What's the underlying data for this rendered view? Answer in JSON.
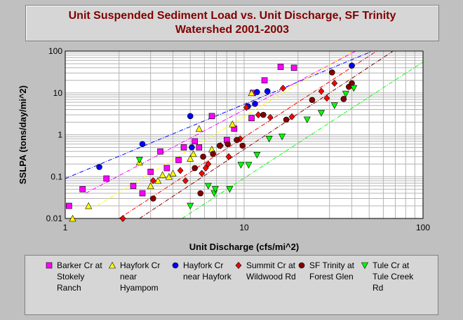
{
  "title": "Unit Suspended Sediment Load vs. Unit Discharge, SF Trinity\nWatershed 2001-2003",
  "chart_data": {
    "type": "scatter",
    "xscale": "log",
    "yscale": "log",
    "xlim": [
      1,
      100
    ],
    "ylim": [
      0.01,
      100
    ],
    "xlabel": "Unit Discharge (cfs/mi^2)",
    "ylabel": "SSLPA (tons/day/mi^2)",
    "xticks": [
      "1",
      "10",
      "100"
    ],
    "yticks": [
      "0.01",
      "0.1",
      "1",
      "10",
      "100"
    ],
    "grid": true,
    "legend_position": "bottom",
    "series": [
      {
        "name": "Barker Cr at Stokely Ranch",
        "marker": "square",
        "color": "#ff00ff",
        "points": [
          [
            1.05,
            0.02
          ],
          [
            1.25,
            0.05
          ],
          [
            1.7,
            0.09
          ],
          [
            2.4,
            0.06
          ],
          [
            2.7,
            0.04
          ],
          [
            3.0,
            0.13
          ],
          [
            3.4,
            0.4
          ],
          [
            3.7,
            0.16
          ],
          [
            4.3,
            0.25
          ],
          [
            4.6,
            0.5
          ],
          [
            5.3,
            0.7
          ],
          [
            5.6,
            0.5
          ],
          [
            6.6,
            2.8
          ],
          [
            8.0,
            0.75
          ],
          [
            8.8,
            1.4
          ],
          [
            11.0,
            2.5
          ],
          [
            11.2,
            10.0
          ],
          [
            13.0,
            20.0
          ],
          [
            16.0,
            42.0
          ],
          [
            19.0,
            40.0
          ]
        ]
      },
      {
        "name": "Hayfork Cr near Hyampom",
        "marker": "triangle-up",
        "color": "#ffff00",
        "points": [
          [
            1.1,
            0.01
          ],
          [
            1.35,
            0.02
          ],
          [
            2.6,
            0.22
          ],
          [
            3.0,
            0.06
          ],
          [
            3.3,
            0.08
          ],
          [
            3.5,
            0.11
          ],
          [
            3.8,
            0.1
          ],
          [
            4.0,
            0.12
          ],
          [
            5.0,
            0.27
          ],
          [
            5.2,
            0.35
          ],
          [
            5.6,
            1.4
          ],
          [
            6.6,
            0.45
          ],
          [
            8.6,
            1.8
          ],
          [
            11.0,
            10.0
          ]
        ]
      },
      {
        "name": "Hayfork Cr near Hayfork",
        "marker": "circle",
        "color": "#0000ff",
        "points": [
          [
            1.55,
            0.17
          ],
          [
            2.7,
            0.6
          ],
          [
            5.0,
            2.8
          ],
          [
            5.1,
            0.5
          ],
          [
            10.5,
            4.8
          ],
          [
            11.5,
            5.5
          ],
          [
            11.8,
            10.5
          ],
          [
            13.5,
            11.0
          ],
          [
            40.0,
            45.0
          ]
        ]
      },
      {
        "name": "Summit Cr at Wildwood Rd",
        "marker": "diamond",
        "color": "#ff0000",
        "points": [
          [
            2.1,
            0.01
          ],
          [
            3.1,
            0.08
          ],
          [
            4.4,
            0.14
          ],
          [
            4.7,
            0.08
          ],
          [
            5.8,
            0.12
          ],
          [
            6.1,
            0.16
          ],
          [
            6.3,
            0.2
          ],
          [
            7.4,
            0.55
          ],
          [
            8.2,
            0.3
          ],
          [
            9.5,
            0.8
          ],
          [
            10.3,
            4.5
          ],
          [
            12.0,
            3.0
          ],
          [
            14.0,
            2.6
          ],
          [
            16.5,
            13.0
          ],
          [
            18.5,
            2.7
          ],
          [
            27.0,
            11.0
          ],
          [
            29.0,
            7.5
          ],
          [
            32.0,
            17.0
          ]
        ]
      },
      {
        "name": "SF Trinity at Forest Glen",
        "marker": "circle",
        "color": "#800000",
        "points": [
          [
            3.1,
            0.03
          ],
          [
            5.3,
            0.16
          ],
          [
            5.7,
            0.04
          ],
          [
            5.9,
            0.3
          ],
          [
            6.7,
            0.35
          ],
          [
            7.3,
            0.55
          ],
          [
            8.1,
            0.6
          ],
          [
            9.1,
            0.75
          ],
          [
            9.8,
            0.55
          ],
          [
            12.8,
            3.0
          ],
          [
            17.2,
            2.3
          ],
          [
            24.0,
            6.8
          ],
          [
            31.0,
            31.0
          ],
          [
            36.0,
            7.2
          ],
          [
            38.5,
            14.0
          ],
          [
            40.0,
            17.0
          ]
        ]
      },
      {
        "name": "Tule Cr at Tule Creek Rd",
        "marker": "triangle-down",
        "color": "#00ff00",
        "points": [
          [
            2.6,
            0.25
          ],
          [
            5.0,
            0.02
          ],
          [
            6.3,
            0.06
          ],
          [
            6.8,
            0.04
          ],
          [
            6.9,
            0.05
          ],
          [
            8.3,
            0.05
          ],
          [
            9.6,
            0.19
          ],
          [
            10.6,
            0.19
          ],
          [
            11.8,
            0.33
          ],
          [
            13.8,
            0.8
          ],
          [
            16.3,
            0.9
          ],
          [
            22.5,
            2.3
          ],
          [
            27.0,
            3.3
          ],
          [
            32.0,
            5.0
          ],
          [
            37.0,
            9.5
          ],
          [
            41.0,
            13.0
          ]
        ]
      }
    ],
    "trend_lines": [
      {
        "color": "#0000ff",
        "from": [
          1,
          0.09
        ],
        "to": [
          55,
          110
        ]
      },
      {
        "color": "#ff00ff",
        "from": [
          1.3,
          0.04
        ],
        "to": [
          42,
          100
        ]
      },
      {
        "color": "#ffff00",
        "from": [
          1.5,
          0.02
        ],
        "to": [
          40,
          100
        ]
      },
      {
        "color": "#ff0000",
        "from": [
          2.0,
          0.01
        ],
        "to": [
          55,
          100
        ]
      },
      {
        "color": "#800000",
        "from": [
          2.6,
          0.01
        ],
        "to": [
          68,
          100
        ]
      },
      {
        "color": "#00ff00",
        "from": [
          4.5,
          0.01
        ],
        "to": [
          100,
          55
        ]
      }
    ]
  }
}
